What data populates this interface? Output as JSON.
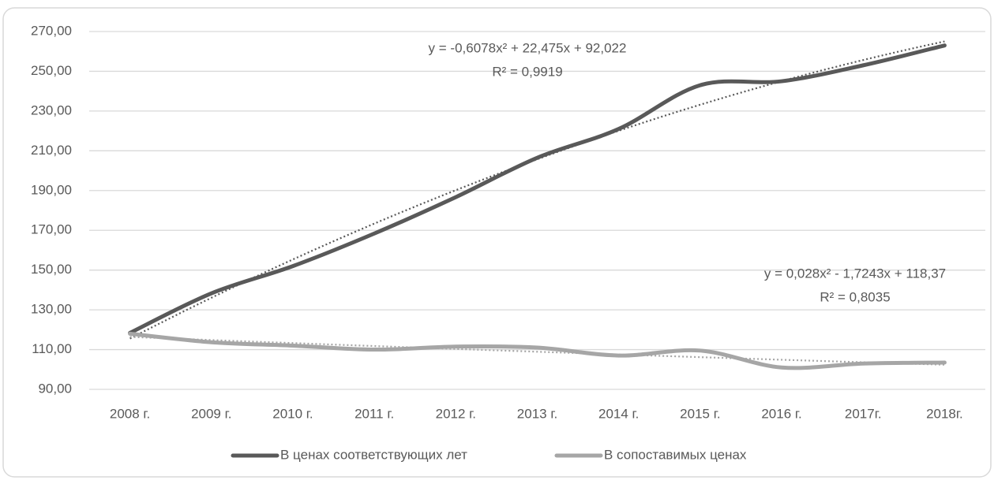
{
  "chart_data": {
    "type": "line",
    "categories": [
      "2008 г.",
      "2009 г.",
      "2010 г.",
      "2011 г.",
      "2012 г.",
      "2013 г.",
      "2014 г.",
      "2015 г.",
      "2016 г.",
      "2017г.",
      "2018г."
    ],
    "series": [
      {
        "name": "В ценах соответствующих лет",
        "color": "#595959",
        "values": [
          118.4,
          138.3,
          152,
          168.4,
          186.7,
          206.5,
          221,
          243,
          245,
          253,
          263
        ]
      },
      {
        "name": "В сопоставимых ценах",
        "color": "#a6a6a6",
        "values": [
          118,
          113.7,
          112,
          110,
          111.5,
          111,
          107,
          109.5,
          101,
          103,
          103.5
        ]
      }
    ],
    "ylim": [
      90,
      270
    ],
    "yticks": [
      {
        "value": 90,
        "label": "90,00"
      },
      {
        "value": 110,
        "label": "110,00"
      },
      {
        "value": 130,
        "label": "130,00"
      },
      {
        "value": 150,
        "label": "150,00"
      },
      {
        "value": 170,
        "label": "170,00"
      },
      {
        "value": 190,
        "label": "190,00"
      },
      {
        "value": 210,
        "label": "210,00"
      },
      {
        "value": 230,
        "label": "230,00"
      },
      {
        "value": 250,
        "label": "250,00"
      },
      {
        "value": 270,
        "label": "270,00"
      }
    ],
    "grid": true,
    "legend": "bottom",
    "trendline": "polynomial-2",
    "annotations": [
      {
        "equation": "y = -0,6078x² + 22,475x + 92,022",
        "r2": "R² = 0,9919"
      },
      {
        "equation": "y = 0,028x² - 1,7243x + 118,37",
        "r2": "R² = 0,8035"
      }
    ]
  }
}
